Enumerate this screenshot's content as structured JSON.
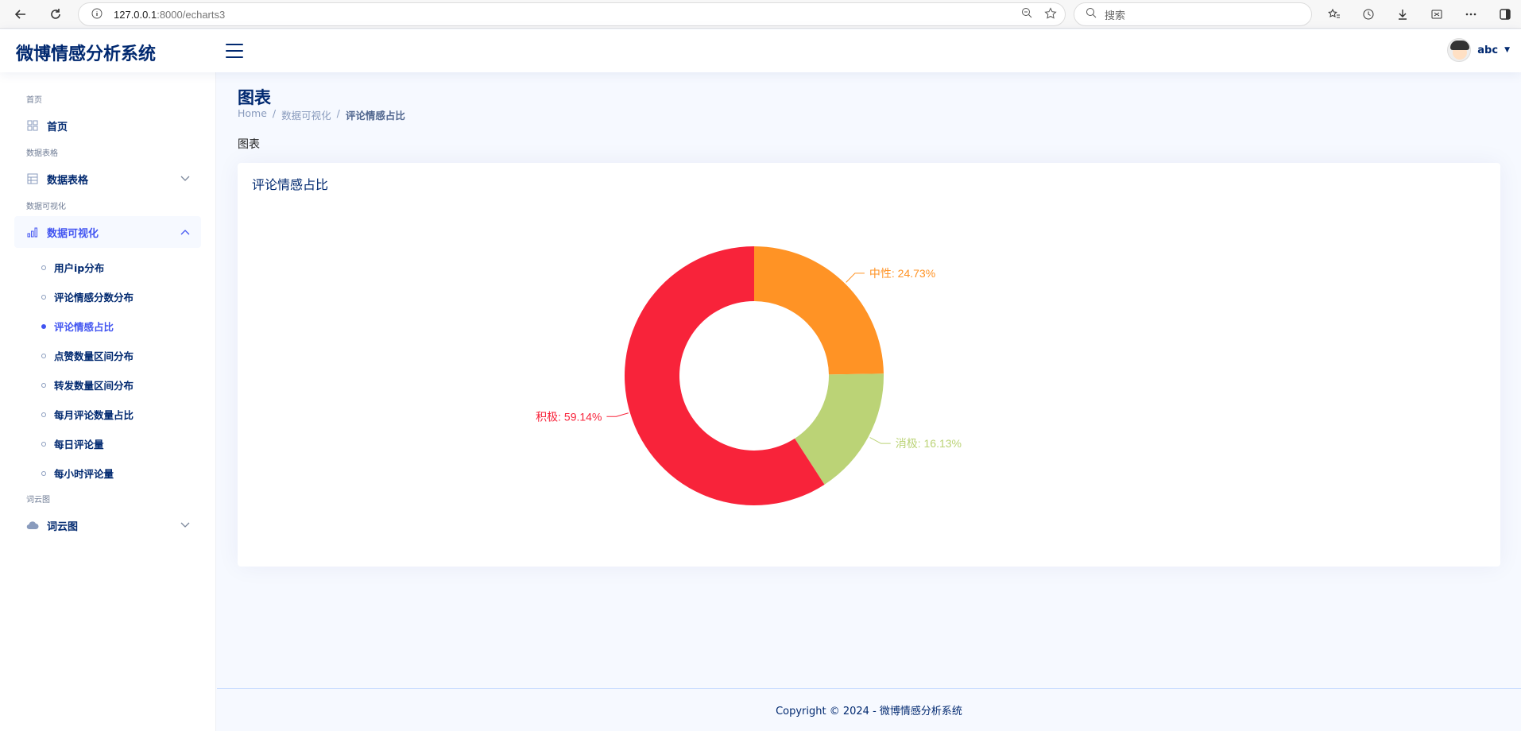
{
  "browser": {
    "url_host": "127.0.0.1",
    "url_path": ":8000/echarts3",
    "search_placeholder": "搜索"
  },
  "header": {
    "logo": "微博情感分析系统",
    "username": "abc"
  },
  "sidebar": {
    "sections": [
      {
        "heading": "首页",
        "label": "首页",
        "icon": "grid-icon"
      },
      {
        "heading": "数据表格",
        "label": "数据表格",
        "icon": "table-icon"
      },
      {
        "heading": "数据可视化",
        "label": "数据可视化",
        "icon": "bar-chart-icon"
      },
      {
        "heading": "词云图",
        "label": "词云图",
        "icon": "cloud-icon"
      }
    ],
    "viz_items": [
      "用户ip分布",
      "评论情感分数分布",
      "评论情感占比",
      "点赞数量区间分布",
      "转发数量区间分布",
      "每月评论数量占比",
      "每日评论量",
      "每小时评论量"
    ],
    "active_item": "评论情感占比"
  },
  "page": {
    "title": "图表",
    "breadcrumb": [
      "Home",
      "数据可视化",
      "评论情感占比"
    ],
    "section_label": "图表",
    "card_title": "评论情感占比"
  },
  "chart_data": {
    "type": "pie",
    "title": "评论情感占比",
    "donut": true,
    "slices": [
      {
        "name": "中性",
        "value": 24.73,
        "label": "中性: 24.73%",
        "color": "#ff9325"
      },
      {
        "name": "消极",
        "value": 16.13,
        "label": "消极: 16.13%",
        "color": "#bbd376"
      },
      {
        "name": "积极",
        "value": 59.14,
        "label": "积极: 59.14%",
        "color": "#f8233a"
      }
    ]
  },
  "footer": {
    "copyright": "Copyright © 2024 - 微博情感分析系统"
  }
}
